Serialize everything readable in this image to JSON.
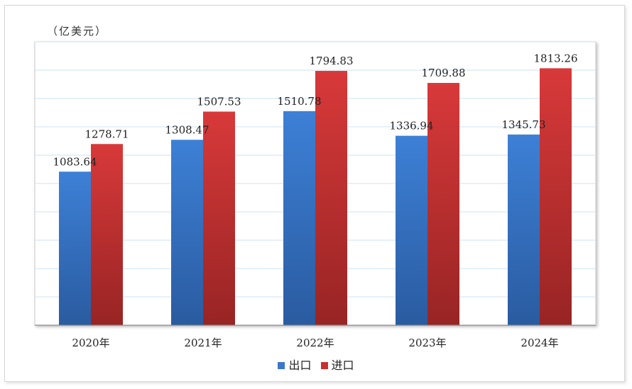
{
  "chart_data": {
    "type": "bar",
    "unit_label": "（亿美元）",
    "categories": [
      "2020年",
      "2021年",
      "2022年",
      "2023年",
      "2024年"
    ],
    "series": [
      {
        "name": "出口",
        "color": "#3a78c9",
        "values": [
          1083.64,
          1308.47,
          1510.78,
          1336.94,
          1345.73
        ],
        "labels": [
          "1083.64",
          "1308.47",
          "1510.78",
          "1336.94",
          "1345.73"
        ]
      },
      {
        "name": "进口",
        "color": "#c8302f",
        "values": [
          1278.71,
          1507.53,
          1794.83,
          1709.88,
          1813.26
        ],
        "labels": [
          "1278.71",
          "1507.53",
          "1794.83",
          "1709.88",
          "1813.26"
        ]
      }
    ],
    "ylim": [
      0,
      2000
    ],
    "grid": true,
    "legend_position": "bottom"
  }
}
